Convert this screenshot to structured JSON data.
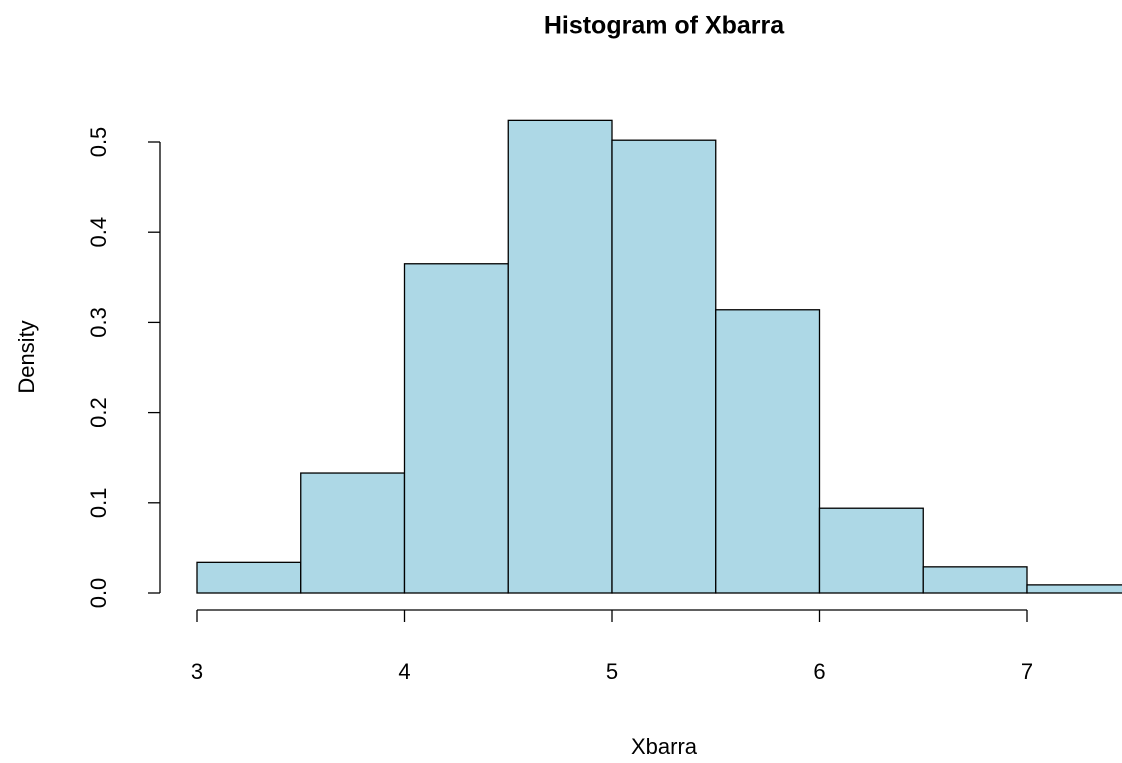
{
  "chart_data": {
    "type": "histogram",
    "title": "Histogram of Xbarra",
    "x_label": "Xbarra",
    "y_label": "Density",
    "bins": [
      3,
      3.5,
      4,
      4.5,
      5,
      5.5,
      6,
      6.5,
      7,
      7.5
    ],
    "values": [
      0.034,
      0.133,
      0.365,
      0.524,
      0.502,
      0.314,
      0.094,
      0.029,
      0.009
    ],
    "color": "#add8e6",
    "xlim": [
      3,
      7
    ],
    "xticks": [
      3,
      4,
      5,
      6,
      7
    ],
    "ylim": [
      0,
      0.5
    ],
    "yticks": [
      {
        "value": 0,
        "label": "0.0"
      },
      0.1,
      0.2,
      0.3,
      0.4,
      0.5
    ]
  }
}
